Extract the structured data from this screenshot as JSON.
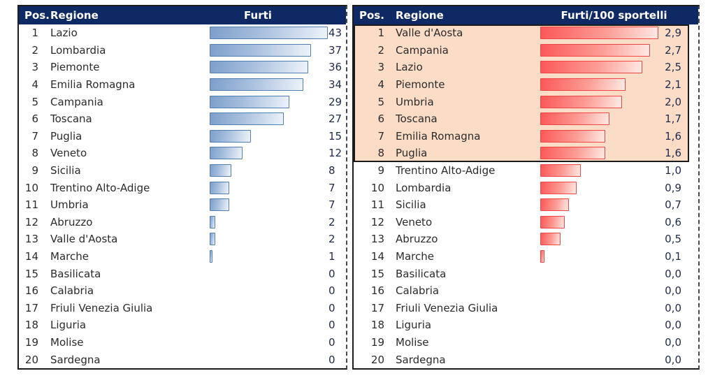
{
  "colors": {
    "header_bg": "#0e2963",
    "header_text": "#ffffff",
    "highlight_bg": "#fbdcc6",
    "blue_bar_fill_start": "#7d9fca",
    "blue_bar_fill_end": "#eef3fa",
    "blue_bar_border": "#537eb0",
    "red_bar_fill_start": "#fb5858",
    "red_bar_fill_end": "#fdeae4",
    "red_bar_border": "#ef4646",
    "body_text": "#2b2b2b",
    "value_text": "#1f2b4d",
    "table_border": "#1b1b1b"
  },
  "tables": [
    {
      "name": "furti",
      "bar_style": "blue",
      "max_value": 43,
      "highlight_top_n": 0,
      "headers": {
        "pos": "Pos.",
        "region": "Regione",
        "value": "Furti"
      },
      "rows": [
        {
          "pos": "1",
          "region": "Lazio",
          "value": "43",
          "num": 43,
          "highlight": false
        },
        {
          "pos": "2",
          "region": "Lombardia",
          "value": "37",
          "num": 37,
          "highlight": false
        },
        {
          "pos": "3",
          "region": "Piemonte",
          "value": "36",
          "num": 36,
          "highlight": false
        },
        {
          "pos": "4",
          "region": "Emilia Romagna",
          "value": "34",
          "num": 34,
          "highlight": false
        },
        {
          "pos": "5",
          "region": "Campania",
          "value": "29",
          "num": 29,
          "highlight": false
        },
        {
          "pos": "6",
          "region": "Toscana",
          "value": "27",
          "num": 27,
          "highlight": false
        },
        {
          "pos": "7",
          "region": "Puglia",
          "value": "15",
          "num": 15,
          "highlight": false
        },
        {
          "pos": "8",
          "region": "Veneto",
          "value": "12",
          "num": 12,
          "highlight": false
        },
        {
          "pos": "9",
          "region": "Sicilia",
          "value": "8",
          "num": 8,
          "highlight": false
        },
        {
          "pos": "10",
          "region": "Trentino Alto-Adige",
          "value": "7",
          "num": 7,
          "highlight": false
        },
        {
          "pos": "11",
          "region": "Umbria",
          "value": "7",
          "num": 7,
          "highlight": false
        },
        {
          "pos": "12",
          "region": "Abruzzo",
          "value": "2",
          "num": 2,
          "highlight": false
        },
        {
          "pos": "13",
          "region": "Valle d'Aosta",
          "value": "2",
          "num": 2,
          "highlight": false
        },
        {
          "pos": "14",
          "region": "Marche",
          "value": "1",
          "num": 1,
          "highlight": false
        },
        {
          "pos": "15",
          "region": "Basilicata",
          "value": "0",
          "num": 0,
          "highlight": false
        },
        {
          "pos": "16",
          "region": "Calabria",
          "value": "0",
          "num": 0,
          "highlight": false
        },
        {
          "pos": "17",
          "region": "Friuli Venezia Giulia",
          "value": "0",
          "num": 0,
          "highlight": false
        },
        {
          "pos": "18",
          "region": "Liguria",
          "value": "0",
          "num": 0,
          "highlight": false
        },
        {
          "pos": "19",
          "region": "Molise",
          "value": "0",
          "num": 0,
          "highlight": false
        },
        {
          "pos": "20",
          "region": "Sardegna",
          "value": "0",
          "num": 0,
          "highlight": false
        }
      ]
    },
    {
      "name": "furti-per-100-sportelli",
      "bar_style": "red",
      "max_value": 2.9,
      "highlight_top_n": 8,
      "headers": {
        "pos": "Pos.",
        "region": "Regione",
        "value": "Furti/100 sportelli"
      },
      "rows": [
        {
          "pos": "1",
          "region": "Valle d'Aosta",
          "value": "2,9",
          "num": 2.9,
          "highlight": true
        },
        {
          "pos": "2",
          "region": "Campania",
          "value": "2,7",
          "num": 2.7,
          "highlight": true
        },
        {
          "pos": "3",
          "region": "Lazio",
          "value": "2,5",
          "num": 2.5,
          "highlight": true
        },
        {
          "pos": "4",
          "region": "Piemonte",
          "value": "2,1",
          "num": 2.1,
          "highlight": true
        },
        {
          "pos": "5",
          "region": "Umbria",
          "value": "2,0",
          "num": 2.0,
          "highlight": true
        },
        {
          "pos": "6",
          "region": "Toscana",
          "value": "1,7",
          "num": 1.7,
          "highlight": true
        },
        {
          "pos": "7",
          "region": "Emilia Romagna",
          "value": "1,6",
          "num": 1.6,
          "highlight": true
        },
        {
          "pos": "8",
          "region": "Puglia",
          "value": "1,6",
          "num": 1.6,
          "highlight": true
        },
        {
          "pos": "9",
          "region": "Trentino Alto-Adige",
          "value": "1,0",
          "num": 1.0,
          "highlight": false
        },
        {
          "pos": "10",
          "region": "Lombardia",
          "value": "0,9",
          "num": 0.9,
          "highlight": false
        },
        {
          "pos": "11",
          "region": "Sicilia",
          "value": "0,7",
          "num": 0.7,
          "highlight": false
        },
        {
          "pos": "12",
          "region": "Veneto",
          "value": "0,6",
          "num": 0.6,
          "highlight": false
        },
        {
          "pos": "13",
          "region": "Abruzzo",
          "value": "0,5",
          "num": 0.5,
          "highlight": false
        },
        {
          "pos": "14",
          "region": "Marche",
          "value": "0,1",
          "num": 0.1,
          "highlight": false
        },
        {
          "pos": "15",
          "region": "Basilicata",
          "value": "0,0",
          "num": 0,
          "highlight": false
        },
        {
          "pos": "16",
          "region": "Calabria",
          "value": "0,0",
          "num": 0,
          "highlight": false
        },
        {
          "pos": "17",
          "region": "Friuli Venezia Giulia",
          "value": "0,0",
          "num": 0,
          "highlight": false
        },
        {
          "pos": "18",
          "region": "Liguria",
          "value": "0,0",
          "num": 0,
          "highlight": false
        },
        {
          "pos": "19",
          "region": "Molise",
          "value": "0,0",
          "num": 0,
          "highlight": false
        },
        {
          "pos": "20",
          "region": "Sardegna",
          "value": "0,0",
          "num": 0,
          "highlight": false
        }
      ]
    }
  ],
  "chart_data": [
    {
      "type": "bar",
      "orientation": "horizontal",
      "title": "Furti",
      "categories": [
        "Lazio",
        "Lombardia",
        "Piemonte",
        "Emilia Romagna",
        "Campania",
        "Toscana",
        "Puglia",
        "Veneto",
        "Sicilia",
        "Trentino Alto-Adige",
        "Umbria",
        "Abruzzo",
        "Valle d'Aosta",
        "Marche",
        "Basilicata",
        "Calabria",
        "Friuli Venezia Giulia",
        "Liguria",
        "Molise",
        "Sardegna"
      ],
      "values": [
        43,
        37,
        36,
        34,
        29,
        27,
        15,
        12,
        8,
        7,
        7,
        2,
        2,
        1,
        0,
        0,
        0,
        0,
        0,
        0
      ],
      "xlabel": "",
      "ylabel": "",
      "xlim": [
        0,
        43
      ],
      "grid": false,
      "legend": false,
      "bar_color": "blue-gradient"
    },
    {
      "type": "bar",
      "orientation": "horizontal",
      "title": "Furti/100 sportelli",
      "categories": [
        "Valle d'Aosta",
        "Campania",
        "Lazio",
        "Piemonte",
        "Umbria",
        "Toscana",
        "Emilia Romagna",
        "Puglia",
        "Trentino Alto-Adige",
        "Lombardia",
        "Sicilia",
        "Veneto",
        "Abruzzo",
        "Marche",
        "Basilicata",
        "Calabria",
        "Friuli Venezia Giulia",
        "Liguria",
        "Molise",
        "Sardegna"
      ],
      "values": [
        2.9,
        2.7,
        2.5,
        2.1,
        2.0,
        1.7,
        1.6,
        1.6,
        1.0,
        0.9,
        0.7,
        0.6,
        0.5,
        0.1,
        0.0,
        0.0,
        0.0,
        0.0,
        0.0,
        0.0
      ],
      "xlabel": "",
      "ylabel": "",
      "xlim": [
        0,
        2.9
      ],
      "grid": false,
      "legend": false,
      "bar_color": "red-gradient",
      "highlighted_top_n": 8,
      "decimal_separator": ","
    }
  ]
}
